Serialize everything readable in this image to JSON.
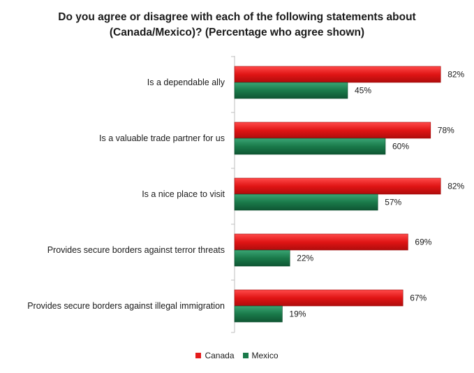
{
  "chart_data": {
    "type": "bar",
    "orientation": "horizontal",
    "title_lines": [
      "Do you agree or disagree with each of the following statements about",
      "(Canada/Mexico)? (Percentage who agree shown)"
    ],
    "categories": [
      "Is a dependable ally",
      "Is a valuable trade partner for us",
      "Is a nice place to visit",
      "Provides secure borders against terror threats",
      "Provides secure borders against illegal immigration"
    ],
    "series": [
      {
        "name": "Canada",
        "color": "#e41b1b",
        "values": [
          82,
          78,
          82,
          69,
          67
        ],
        "labels": [
          "82%",
          "78%",
          "82%",
          "69%",
          "67%"
        ]
      },
      {
        "name": "Mexico",
        "color": "#1a7a4a",
        "values": [
          45,
          60,
          57,
          22,
          19
        ],
        "labels": [
          "45%",
          "60%",
          "57%",
          "22%",
          "19%"
        ]
      }
    ],
    "xlim": [
      0,
      100
    ],
    "grid": false,
    "legend_position": "bottom"
  }
}
